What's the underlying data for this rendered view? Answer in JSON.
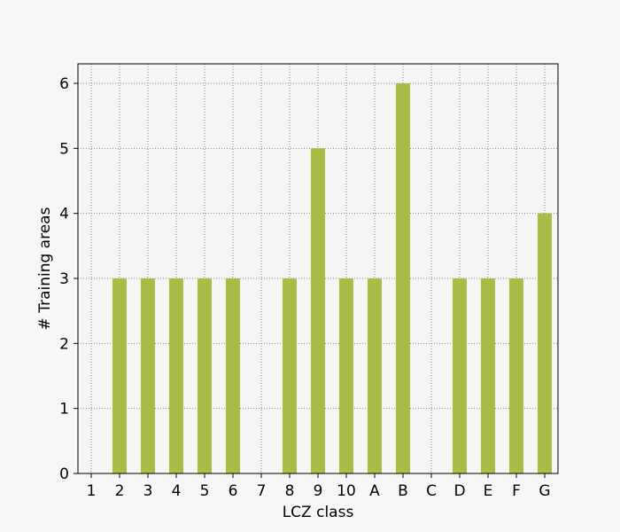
{
  "chart_data": {
    "type": "bar",
    "categories": [
      "1",
      "2",
      "3",
      "4",
      "5",
      "6",
      "7",
      "8",
      "9",
      "10",
      "A",
      "B",
      "C",
      "D",
      "E",
      "F",
      "G"
    ],
    "values": [
      0,
      3,
      3,
      3,
      3,
      3,
      0,
      3,
      5,
      3,
      3,
      6,
      0,
      3,
      3,
      3,
      4
    ],
    "xlabel": "LCZ class",
    "ylabel": "# Training areas",
    "ylim": [
      0,
      6.3
    ],
    "yticks": [
      0,
      1,
      2,
      3,
      4,
      5,
      6
    ],
    "grid": true,
    "colors": {
      "bar": "#a7bd46",
      "background": "#f7f7f7",
      "plot_background": "#f5f5f5",
      "grid": "#888888"
    }
  }
}
